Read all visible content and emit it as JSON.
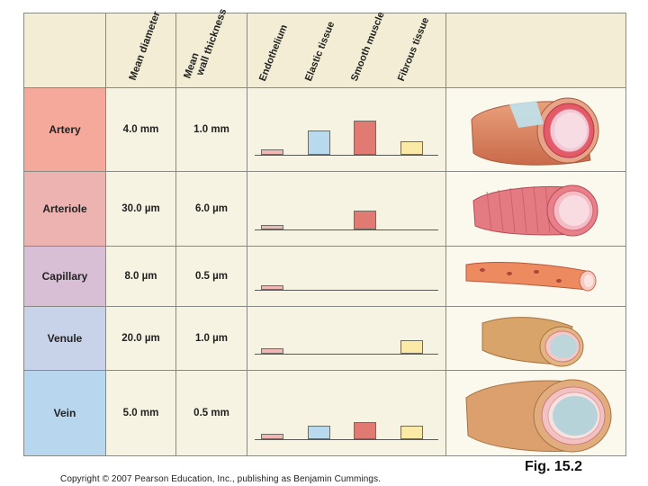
{
  "header": {
    "mean_diameter": "Mean diameter",
    "mean_wall_line1": "Mean",
    "mean_wall_line2": "wall thickness",
    "components": [
      "Endothelium",
      "Elastic tissue",
      "Smooth muscle",
      "Fibrous tissue"
    ]
  },
  "rows": [
    {
      "name": "Artery",
      "diameter": "4.0 mm",
      "wall": "1.0 mm",
      "bars": {
        "endothelium": 0.15,
        "elastic": 0.7,
        "smooth": 1.0,
        "fibrous": 0.4
      },
      "color": "#f4a99a"
    },
    {
      "name": "Arteriole",
      "diameter": "30.0 µm",
      "wall": "6.0 µm",
      "bars": {
        "endothelium": 0.12,
        "elastic": 0,
        "smooth": 0.55,
        "fibrous": 0
      },
      "color": "#ecb3b0"
    },
    {
      "name": "Capillary",
      "diameter": "8.0 µm",
      "wall": "0.5 µm",
      "bars": {
        "endothelium": 0.12,
        "elastic": 0,
        "smooth": 0,
        "fibrous": 0
      },
      "color": "#d9bfd6"
    },
    {
      "name": "Venule",
      "diameter": "20.0 µm",
      "wall": "1.0 µm",
      "bars": {
        "endothelium": 0.15,
        "elastic": 0,
        "smooth": 0,
        "fibrous": 0.4
      },
      "color": "#c8d3e9"
    },
    {
      "name": "Vein",
      "diameter": "5.0 mm",
      "wall": "0.5 mm",
      "bars": {
        "endothelium": 0.15,
        "elastic": 0.4,
        "smooth": 0.5,
        "fibrous": 0.4
      },
      "color": "#b9d6ef"
    }
  ],
  "bar_colors": {
    "endothelium": "#f2b6b4",
    "elastic": "#b9d9ee",
    "smooth": "#e07a73",
    "fibrous": "#fbe9a8"
  },
  "figure_label": "Fig. 15.2",
  "copyright": "Copyright © 2007 Pearson Education, Inc., publishing as Benjamin Cummings."
}
